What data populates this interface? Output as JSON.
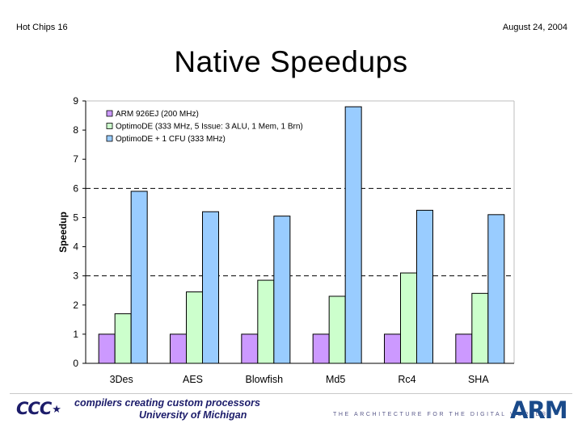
{
  "header": {
    "left": "Hot Chips 16",
    "right": "August 24, 2004"
  },
  "slide": {
    "title": "Native Speedups"
  },
  "chart_data": {
    "type": "bar",
    "title": "Native Speedups",
    "xlabel": "",
    "ylabel": "Speedup",
    "ylim": [
      0,
      9
    ],
    "yticks": [
      "0",
      "1",
      "2",
      "3",
      "4",
      "5",
      "6",
      "7",
      "8",
      "9"
    ],
    "reference_lines": [
      3,
      6
    ],
    "categories": [
      "3Des",
      "AES",
      "Blowfish",
      "Md5",
      "Rc4",
      "SHA"
    ],
    "legend_position": "top-left",
    "series": [
      {
        "name": "ARM 926EJ (200 MHz)",
        "color": "#cc99ff",
        "values": [
          1,
          1,
          1,
          1,
          1,
          1
        ]
      },
      {
        "name": "OptimoDE (333 MHz, 5 Issue: 3 ALU, 1 Mem, 1 Brn)",
        "color": "#ccffcc",
        "values": [
          1.7,
          2.45,
          2.85,
          2.3,
          3.1,
          2.4
        ]
      },
      {
        "name": "OptimoDE + 1 CFU (333 MHz)",
        "color": "#99ccff",
        "values": [
          5.9,
          5.2,
          5.05,
          8.8,
          5.25,
          5.1
        ]
      }
    ]
  },
  "footer": {
    "logo_text": "CCC",
    "line1": "compilers creating custom processors",
    "line2": "University of Michigan",
    "arm_tagline": "THE ARCHITECTURE FOR THE DIGITAL WORLD",
    "arm_registered": "®",
    "arm_logo": "ARM"
  }
}
